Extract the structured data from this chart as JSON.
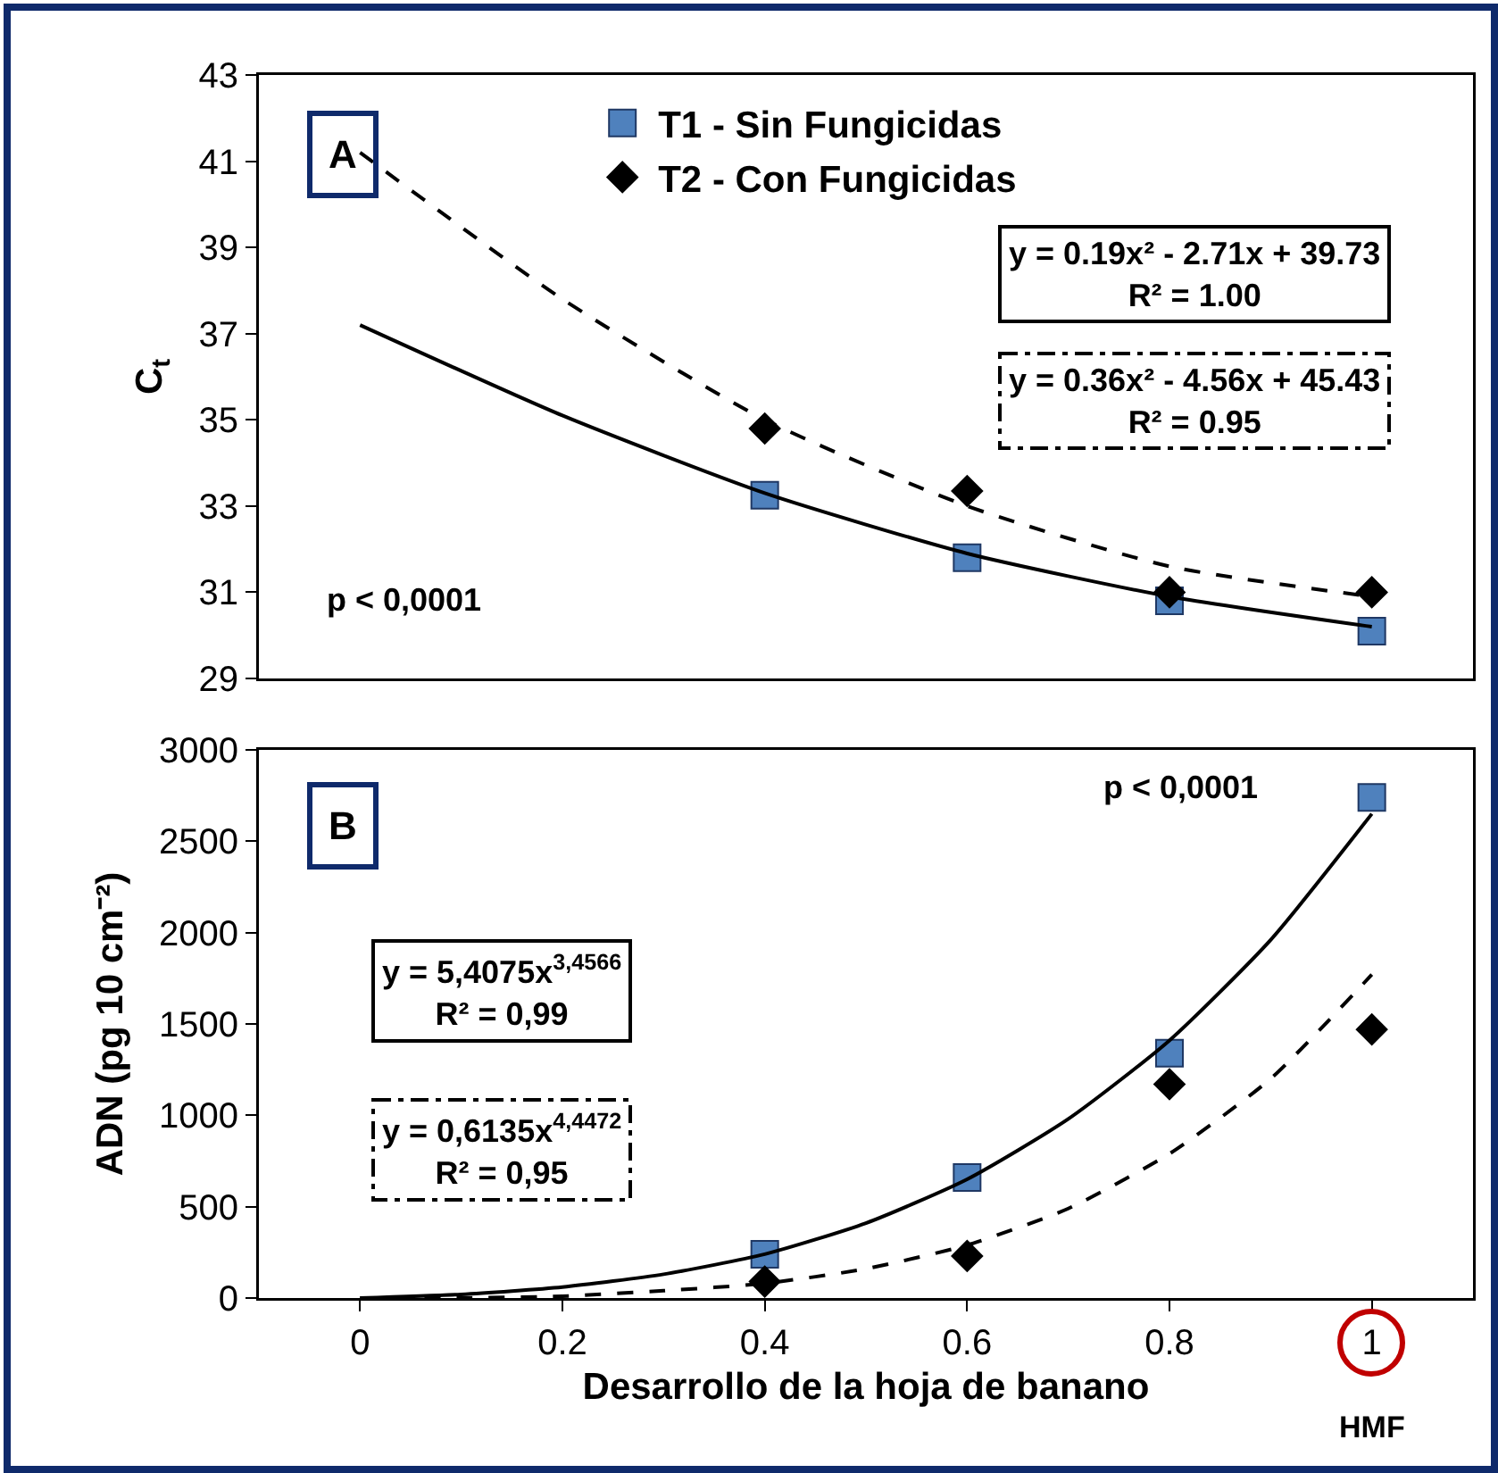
{
  "chart_data": [
    {
      "type": "scatter",
      "title": "A",
      "ylabel": "C$_{t}$",
      "xlim": [
        -0.1,
        1.1
      ],
      "ylim": [
        29,
        43
      ],
      "yticks": [
        29,
        31,
        33,
        35,
        37,
        39,
        41,
        43
      ],
      "tick_labels": "y",
      "grid": false,
      "legend": "top",
      "annotations": [
        "y = 0.19x² - 2.71x + 39.73\nR² = 1.00",
        "y = 0.36x² - 4.56x + 45.43\nR² = 0.95",
        "p < 0,0001"
      ],
      "series": [
        {
          "name": "T1 - Sin Fungicidas",
          "color": "#4f81bd",
          "marker": "square",
          "x": [
            0.4,
            0.6,
            0.8,
            1.0
          ],
          "values": [
            33.25,
            31.8,
            30.8,
            30.1
          ]
        },
        {
          "name": "T2 - Con Fungicidas",
          "color": "#000000",
          "marker": "diamond",
          "x": [
            0.4,
            0.6,
            0.8,
            1.0
          ],
          "values": [
            34.8,
            33.35,
            31.0,
            31.0
          ]
        },
        {
          "type": "line",
          "color": "#000000",
          "marker": "none",
          "line_style": "solid",
          "x": [
            0,
            0.2,
            0.4,
            0.6,
            0.8,
            1.0
          ],
          "values": [
            37.2,
            35.1,
            33.3,
            31.9,
            30.9,
            30.2
          ]
        },
        {
          "type": "line",
          "color": "#000000",
          "marker": "none",
          "line_style": "dashed",
          "x": [
            0,
            0.2,
            0.4,
            0.6,
            0.8,
            1.0
          ],
          "values": [
            41.2,
            37.8,
            35.0,
            33.0,
            31.6,
            30.9
          ]
        }
      ]
    },
    {
      "type": "scatter",
      "title": "B",
      "xlabel": "Desarrollo de la hoja de banano",
      "ylabel": "ADN (pg 10 cm⁻²)",
      "xlim": [
        -0.1,
        1.1
      ],
      "xticks": [
        0,
        0.2,
        0.4,
        0.6,
        0.8,
        1
      ],
      "ylim": [
        0,
        3000
      ],
      "yticks": [
        0,
        500,
        1000,
        1500,
        2000,
        2500,
        3000
      ],
      "grid": false,
      "legend": false,
      "annotations": [
        "p < 0,0001",
        "y = 5,4075x$^{3,4566}$\nR² = 0,99",
        "y = 0,6135x$^{4,4472}$\nR² = 0,95",
        "HMF"
      ],
      "series": [
        {
          "color": "#4f81bd",
          "marker": "square",
          "x": [
            0.4,
            0.6,
            0.8,
            1.0
          ],
          "values": [
            240,
            660,
            1340,
            2740
          ]
        },
        {
          "color": "#000000",
          "marker": "diamond",
          "x": [
            0.4,
            0.6,
            0.8,
            1.0
          ],
          "values": [
            90,
            230,
            1170,
            1470
          ]
        },
        {
          "type": "line",
          "color": "#000000",
          "marker": "none",
          "line_style": "solid",
          "x": [
            0,
            0.1,
            0.2,
            0.3,
            0.4,
            0.5,
            0.6,
            0.7,
            0.8,
            0.9,
            1.0
          ],
          "values": [
            0,
            20,
            60,
            130,
            240,
            410,
            650,
            980,
            1410,
            1960,
            2650
          ]
        },
        {
          "type": "line",
          "color": "#000000",
          "marker": "none",
          "line_style": "dashed",
          "x": [
            0,
            0.1,
            0.2,
            0.3,
            0.4,
            0.5,
            0.6,
            0.7,
            0.8,
            0.9,
            1.0
          ],
          "values": [
            0,
            0,
            10,
            40,
            80,
            160,
            290,
            490,
            790,
            1200,
            1770
          ]
        }
      ]
    }
  ]
}
